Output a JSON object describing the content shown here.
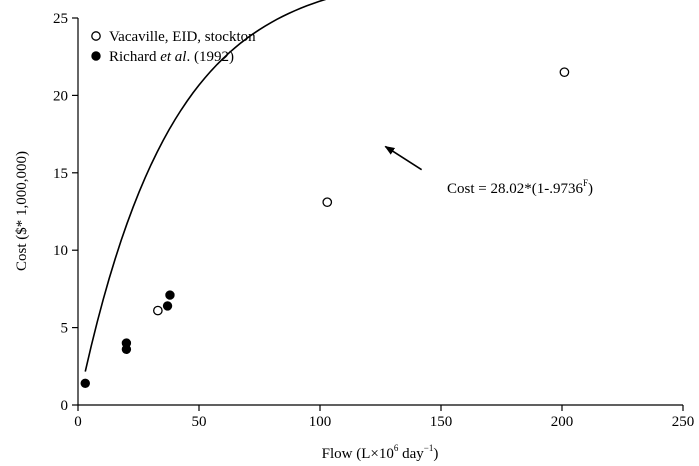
{
  "chart_data": {
    "type": "scatter",
    "xlabel": {
      "base": "Flow (L×10",
      "sup1": "6",
      "mid": " day",
      "sup2": "−1",
      "end": ")"
    },
    "ylabel": "Cost ($* 1,000,000)",
    "xlim": [
      0,
      250
    ],
    "ylim": [
      0,
      25
    ],
    "xticks": [
      "0",
      "50",
      "100",
      "150",
      "200",
      "250"
    ],
    "yticks": [
      "0",
      "5",
      "10",
      "15",
      "20",
      "25"
    ],
    "grid": false,
    "legend_position": "top-left",
    "series": [
      {
        "name": "Vacaville, EID, stockton",
        "marker": "open-circle",
        "points": [
          {
            "x": 33,
            "y": 6.1
          },
          {
            "x": 103,
            "y": 13.1
          },
          {
            "x": 201,
            "y": 21.5
          }
        ]
      },
      {
        "name_parts": {
          "before": "Richard ",
          "italic": "et al",
          "after": ". (1992)"
        },
        "marker": "filled-circle",
        "points": [
          {
            "x": 3,
            "y": 1.4
          },
          {
            "x": 20,
            "y": 3.6
          },
          {
            "x": 20,
            "y": 4.0
          },
          {
            "x": 37,
            "y": 6.4
          },
          {
            "x": 38,
            "y": 7.1
          }
        ]
      }
    ],
    "fit": {
      "formula": {
        "base": "Cost = 28.02*(1-.9736",
        "sup": "F",
        "end": ")"
      },
      "coefficient": 28.02,
      "rate": 0.9736,
      "x_range": [
        3,
        201
      ]
    },
    "annotation_arrow": {
      "from": {
        "x": 142,
        "y": 15.2
      },
      "to": {
        "x": 127,
        "y": 16.7
      }
    }
  }
}
